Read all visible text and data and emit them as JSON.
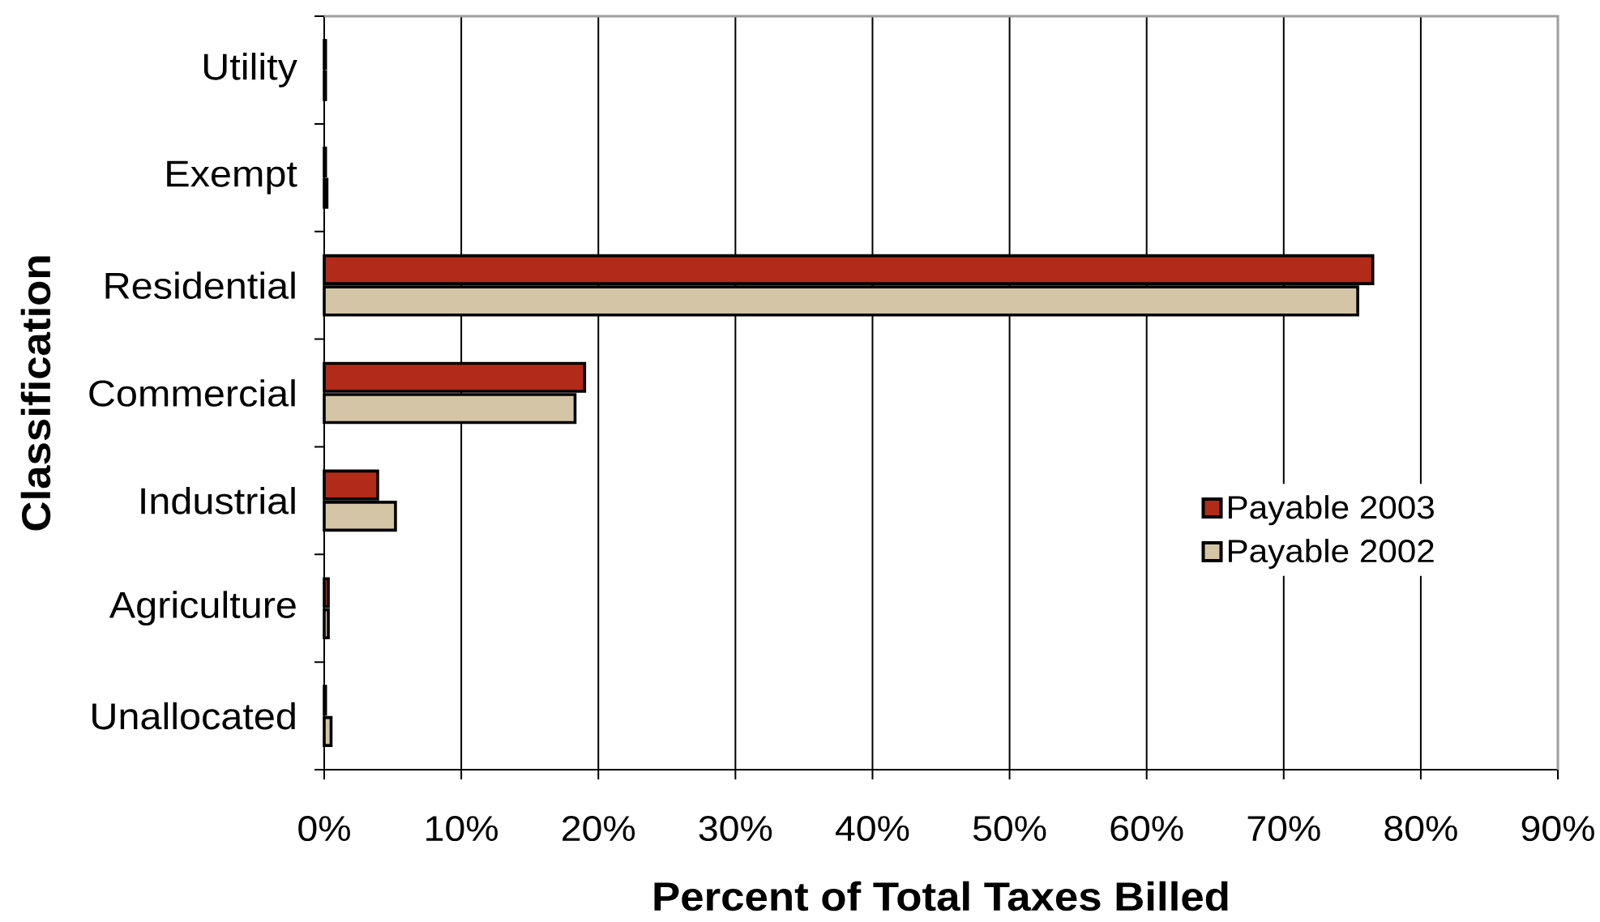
{
  "chart_data": {
    "type": "bar",
    "orientation": "horizontal",
    "xlabel": "Percent of Total Taxes Billed",
    "ylabel": "Classification",
    "categories": [
      "Utility",
      "Exempt",
      "Residential",
      "Commercial",
      "Industrial",
      "Agriculture",
      "Unallocated"
    ],
    "series": [
      {
        "name": "Payable 2003",
        "color": "#b22a18",
        "values": [
          0.1,
          0.1,
          76.5,
          19.0,
          3.9,
          0.3,
          0.1
        ]
      },
      {
        "name": "Payable 2002",
        "color": "#d5c5a7",
        "values": [
          0.1,
          0.2,
          75.4,
          18.3,
          5.2,
          0.3,
          0.5
        ]
      }
    ],
    "xlim": [
      0,
      90
    ],
    "xticks": [
      {
        "value": 0,
        "label": "0%"
      },
      {
        "value": 10,
        "label": "10%"
      },
      {
        "value": 20,
        "label": "20%"
      },
      {
        "value": 30,
        "label": "30%"
      },
      {
        "value": 40,
        "label": "40%"
      },
      {
        "value": 50,
        "label": "50%"
      },
      {
        "value": 60,
        "label": "60%"
      },
      {
        "value": 70,
        "label": "70%"
      },
      {
        "value": 80,
        "label": "80%"
      },
      {
        "value": 90,
        "label": "90%"
      }
    ],
    "grid": "x",
    "legend": "right"
  }
}
